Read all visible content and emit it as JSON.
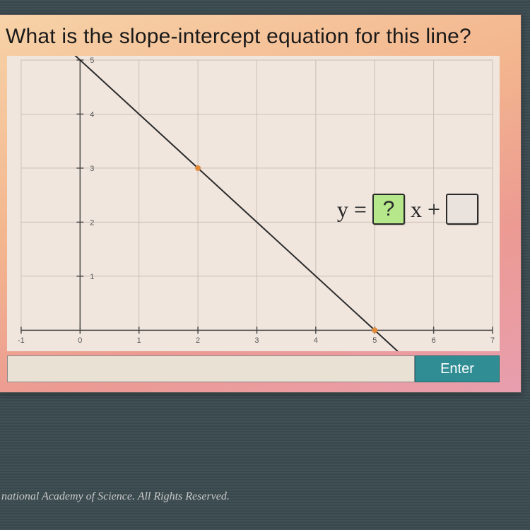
{
  "question": "What is the slope-intercept equation for this line?",
  "chart": {
    "type": "line",
    "background_color": "#f1e6de",
    "grid_color": "#c9bfb6",
    "axis_color": "#4a4a4a",
    "label_color": "#555555",
    "label_fontsize": 11,
    "xlim": [
      -1,
      7
    ],
    "ylim": [
      0,
      5
    ],
    "x_ticks": [
      -1,
      0,
      1,
      2,
      3,
      4,
      5,
      6,
      7
    ],
    "y_ticks": [
      0,
      1,
      2,
      3,
      4,
      5
    ],
    "line_color": "#2a2a2a",
    "line_width": 2,
    "line_points": [
      [
        -0.45,
        5.45
      ],
      [
        5.45,
        -0.45
      ]
    ],
    "points": [
      [
        2,
        3
      ],
      [
        5,
        0
      ]
    ],
    "point_color": "#e08a3a",
    "point_radius": 4
  },
  "equation": {
    "prefix": "y =",
    "box1": "?",
    "mid": "x +",
    "box2": ""
  },
  "input": {
    "value": "",
    "placeholder": ""
  },
  "enter_label": "Enter",
  "footer_text": "national Academy of Science. All Rights Reserved."
}
